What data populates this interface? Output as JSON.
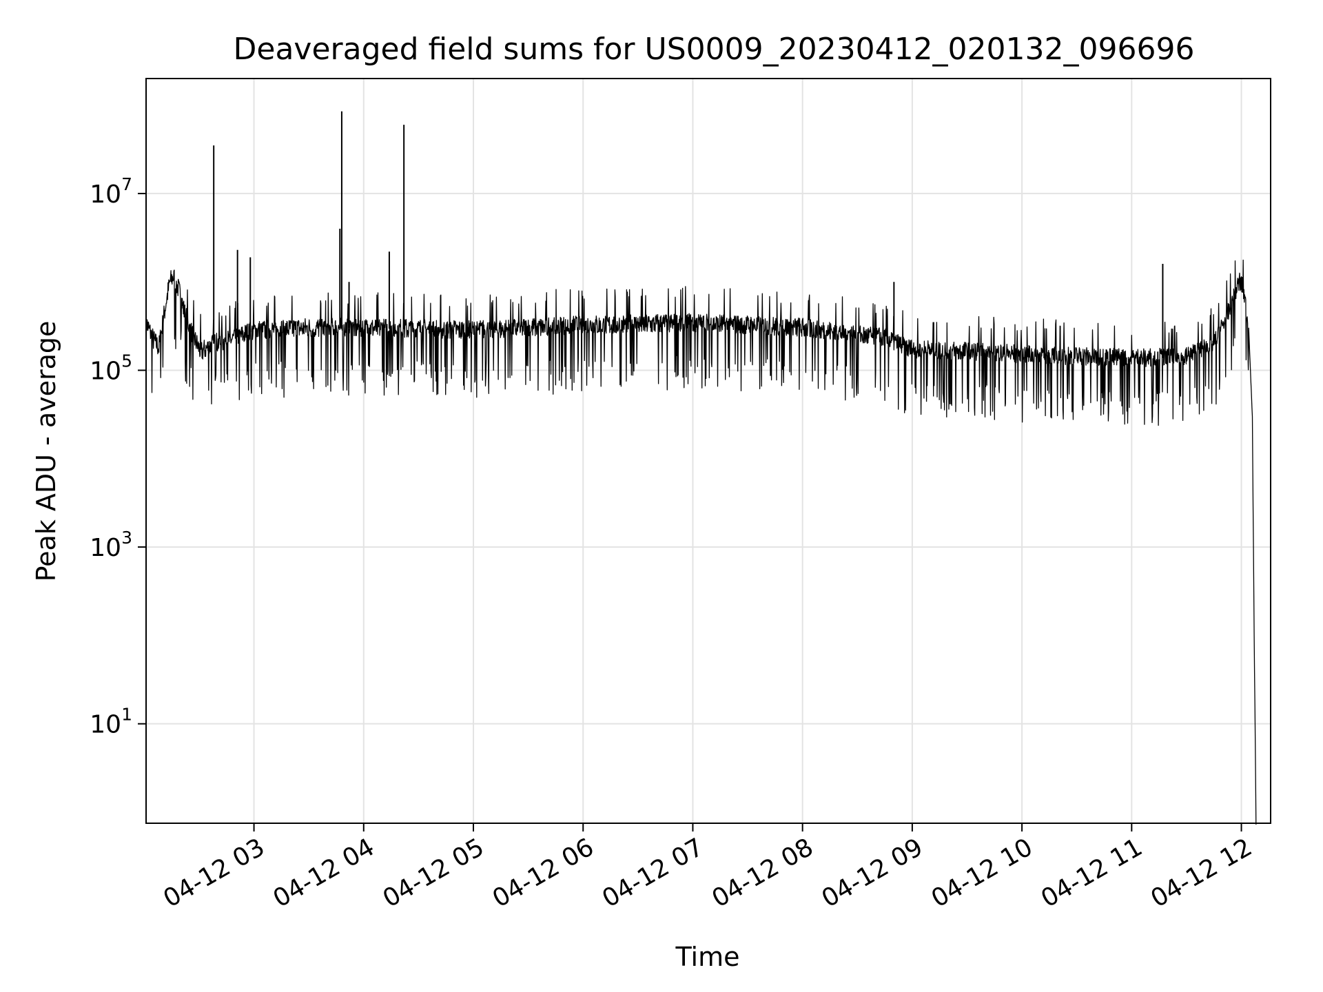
{
  "chart_data": {
    "type": "line",
    "title": "Deaveraged field sums for US0009_20230412_020132_096696",
    "xlabel": "Time",
    "ylabel": "Peak ADU - average",
    "yscale": "log",
    "ylim": [
      0.75,
      200000000.0
    ],
    "xlim": [
      "04-12 02:01",
      "04-12 12:16"
    ],
    "grid": true,
    "x_ticks": [
      "04-12 03",
      "04-12 04",
      "04-12 05",
      "04-12 06",
      "04-12 07",
      "04-12 08",
      "04-12 09",
      "04-12 10",
      "04-12 11",
      "04-12 12"
    ],
    "y_ticks": [
      {
        "value": 10,
        "base": "10",
        "exp": "1"
      },
      {
        "value": 1000,
        "base": "10",
        "exp": "3"
      },
      {
        "value": 100000,
        "base": "10",
        "exp": "5"
      },
      {
        "value": 10000000,
        "base": "10",
        "exp": "7"
      }
    ],
    "series": [
      {
        "color": "#000000",
        "points": [
          [
            "04-12 02:01",
            350000
          ],
          [
            "04-12 02:05",
            220000
          ],
          [
            "04-12 02:08",
            180000
          ],
          [
            "04-12 02:12",
            600000
          ],
          [
            "04-12 02:14",
            1000000
          ],
          [
            "04-12 02:16",
            1150000
          ],
          [
            "04-12 02:19",
            800000
          ],
          [
            "04-12 02:22",
            450000
          ],
          [
            "04-12 02:26",
            260000
          ],
          [
            "04-12 02:31",
            160000
          ],
          [
            "04-12 02:38",
            200000
          ],
          [
            "04-12 02:47",
            220000
          ],
          [
            "04-12 03:00",
            280000
          ],
          [
            "04-12 03:30",
            300000
          ],
          [
            "04-12 04:00",
            300000
          ],
          [
            "04-12 05:00",
            280000
          ],
          [
            "04-12 06:00",
            320000
          ],
          [
            "04-12 07:00",
            340000
          ],
          [
            "04-12 08:00",
            300000
          ],
          [
            "04-12 08:45",
            230000
          ],
          [
            "04-12 09:00",
            170000
          ],
          [
            "04-12 10:00",
            150000
          ],
          [
            "04-12 11:00",
            135000
          ],
          [
            "04-12 11:30",
            140000
          ],
          [
            "04-12 11:45",
            200000
          ],
          [
            "04-12 11:52",
            400000
          ],
          [
            "04-12 11:57",
            800000
          ],
          [
            "04-12 11:59",
            1000000
          ],
          [
            "04-12 12:01",
            850000
          ],
          [
            "04-12 12:04",
            300000
          ],
          [
            "04-12 12:06",
            30000
          ],
          [
            "04-12 12:07",
            100
          ],
          [
            "04-12 12:08",
            1
          ]
        ],
        "spikes": [
          [
            "04-12 02:38",
            35000000
          ],
          [
            "04-12 02:51",
            2300000
          ],
          [
            "04-12 02:58",
            1900000
          ],
          [
            "04-12 03:47",
            4000000
          ],
          [
            "04-12 03:48",
            85000000
          ],
          [
            "04-12 03:52",
            1000000
          ],
          [
            "04-12 04:14",
            2200000
          ],
          [
            "04-12 04:22",
            60000000
          ],
          [
            "04-12 08:50",
            1000000
          ],
          [
            "04-12 11:17",
            1600000
          ]
        ]
      }
    ]
  }
}
